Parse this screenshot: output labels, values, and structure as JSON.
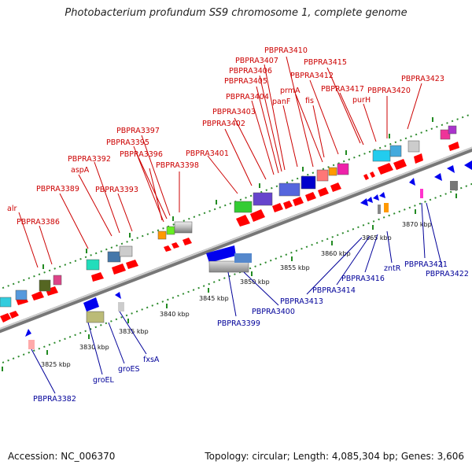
{
  "title": "Photobacterium profundum SS9 chromosome 1, complete genome",
  "footer": {
    "accession": "Accession: NC_006370",
    "summary": "Topology: circular; Length: 4,085,304 bp; Genes: 3,606"
  },
  "kbp_labels": [
    "3825 kbp",
    "3830 kbp",
    "3835 kbp",
    "3840 kbp",
    "3845 kbp",
    "3850 kbp",
    "3855 kbp",
    "3860 kbp",
    "3865 kbp",
    "3870 kbp"
  ],
  "forward_labels": [
    "alr",
    "PBPRA3386",
    "PBPRA3389",
    "aspA",
    "PBPRA3392",
    "PBPRA3393",
    "PBPRA3395",
    "PBPRA3396",
    "PBPRA3397",
    "PBPRA3398",
    "PBPRA3401",
    "PBPRA3402",
    "PBPRA3403",
    "PBPRA3404",
    "PBPRA3405",
    "PBPRA3406",
    "PBPRA3407",
    "PBPRA3410",
    "panF",
    "prmA",
    "fis",
    "PBPRA3412",
    "PBPRA3415",
    "PBPRA3417",
    "purH",
    "PBPRA3420",
    "PBPRA3423"
  ],
  "reverse_labels": [
    "PBPRA3382",
    "groEL",
    "groES",
    "fxsA",
    "PBPRA3399",
    "PBPRA3400",
    "PBPRA3413",
    "PBPRA3414",
    "PBPRA3416",
    "zntR",
    "PBPRA3421",
    "PBPRA3422"
  ],
  "colors": {
    "forward_gene": "#ff0000",
    "reverse_gene": "#0000ee",
    "forward_text": "#cc0000",
    "reverse_text": "#000099",
    "axis": "#999999",
    "ticks": "#228b22"
  }
}
